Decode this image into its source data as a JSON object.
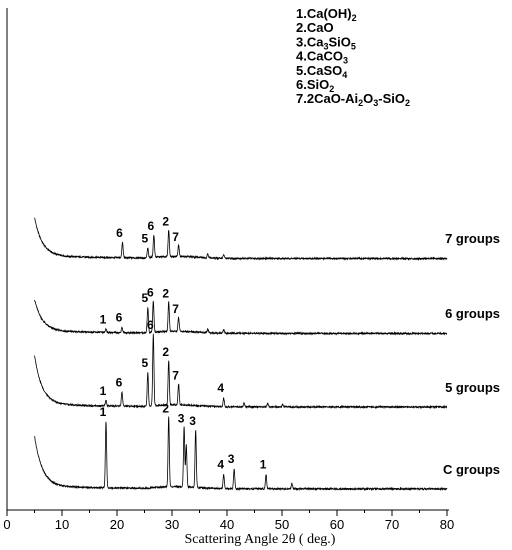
{
  "chart_data": {
    "type": "line",
    "title": "",
    "xlabel": "Scattering Angle 2θ ( deg.)",
    "ylabel": "",
    "xlim": [
      0,
      80
    ],
    "xticks": [
      0,
      10,
      20,
      30,
      40,
      50,
      60,
      70,
      80
    ],
    "y_axis_ticks_shown": false,
    "grid": false,
    "legend_placement": "top-right",
    "legend": [
      {
        "id": "1",
        "parts": [
          [
            "1.Ca(OH)",
            ""
          ],
          [
            "2",
            "sub"
          ]
        ]
      },
      {
        "id": "2",
        "parts": [
          [
            "2.CaO",
            ""
          ]
        ]
      },
      {
        "id": "3",
        "parts": [
          [
            "3.Ca",
            ""
          ],
          [
            "3",
            "sub"
          ],
          [
            "SiO",
            ""
          ],
          [
            "5",
            "sub"
          ]
        ]
      },
      {
        "id": "4",
        "parts": [
          [
            "4.CaCO",
            ""
          ],
          [
            "3",
            "sub"
          ]
        ]
      },
      {
        "id": "5",
        "parts": [
          [
            "5.CaSO",
            ""
          ],
          [
            "4",
            "sub"
          ]
        ]
      },
      {
        "id": "6",
        "parts": [
          [
            "6.SiO",
            ""
          ],
          [
            "2",
            "sub"
          ]
        ]
      },
      {
        "id": "7",
        "parts": [
          [
            "7.2CaO-Ai",
            ""
          ],
          [
            "2",
            "sub"
          ],
          [
            "O",
            ""
          ],
          [
            "3",
            "sub"
          ],
          [
            "-SiO",
            ""
          ],
          [
            "2",
            "sub"
          ]
        ]
      }
    ],
    "series": [
      {
        "name": "7 groups",
        "offset": 3.3,
        "start_intensity": 0.55,
        "baseline": 0.02,
        "peaks": [
          {
            "x": 21.0,
            "h": 0.22,
            "label": "6"
          },
          {
            "x": 25.6,
            "h": 0.14,
            "label": "5"
          },
          {
            "x": 26.7,
            "h": 0.32,
            "label": "6"
          },
          {
            "x": 29.4,
            "h": 0.38,
            "label": "2"
          },
          {
            "x": 31.2,
            "h": 0.16,
            "label": "7"
          },
          {
            "x": 36.5,
            "h": 0.06,
            "label": ""
          },
          {
            "x": 39.4,
            "h": 0.05,
            "label": ""
          }
        ]
      },
      {
        "name": "6 groups",
        "offset": 2.23,
        "start_intensity": 0.45,
        "baseline": 0.02,
        "peaks": [
          {
            "x": 18.0,
            "h": 0.05,
            "label": "1"
          },
          {
            "x": 20.9,
            "h": 0.08,
            "label": "6"
          },
          {
            "x": 25.6,
            "h": 0.36,
            "label": "5"
          },
          {
            "x": 26.6,
            "h": 0.44,
            "label": "6"
          },
          {
            "x": 29.4,
            "h": 0.42,
            "label": "2"
          },
          {
            "x": 31.2,
            "h": 0.2,
            "label": "7"
          },
          {
            "x": 36.5,
            "h": 0.05,
            "label": ""
          },
          {
            "x": 39.4,
            "h": 0.05,
            "label": ""
          }
        ]
      },
      {
        "name": "5 groups",
        "offset": 1.17,
        "start_intensity": 0.7,
        "baseline": 0.03,
        "peaks": [
          {
            "x": 18.0,
            "h": 0.08,
            "label": "1"
          },
          {
            "x": 20.9,
            "h": 0.2,
            "label": "6"
          },
          {
            "x": 25.6,
            "h": 0.48,
            "label": "5"
          },
          {
            "x": 26.6,
            "h": 1.02,
            "label": "6"
          },
          {
            "x": 29.4,
            "h": 0.64,
            "label": "2"
          },
          {
            "x": 31.2,
            "h": 0.3,
            "label": "7"
          },
          {
            "x": 39.4,
            "h": 0.12,
            "label": "4"
          },
          {
            "x": 43.1,
            "h": 0.06,
            "label": ""
          },
          {
            "x": 47.4,
            "h": 0.05,
            "label": ""
          },
          {
            "x": 50.1,
            "h": 0.04,
            "label": ""
          }
        ]
      },
      {
        "name": "C groups",
        "offset": 0.0,
        "start_intensity": 0.72,
        "baseline": 0.03,
        "peaks": [
          {
            "x": 18.0,
            "h": 0.95,
            "label": "1"
          },
          {
            "x": 29.4,
            "h": 1.0,
            "label": "2"
          },
          {
            "x": 32.2,
            "h": 0.86,
            "label": "3"
          },
          {
            "x": 32.6,
            "h": 0.6,
            "label": ""
          },
          {
            "x": 34.3,
            "h": 0.82,
            "label": "3"
          },
          {
            "x": 39.4,
            "h": 0.2,
            "label": "4"
          },
          {
            "x": 41.3,
            "h": 0.28,
            "label": "3"
          },
          {
            "x": 47.1,
            "h": 0.2,
            "label": "1"
          },
          {
            "x": 51.8,
            "h": 0.08,
            "label": ""
          }
        ]
      }
    ]
  }
}
